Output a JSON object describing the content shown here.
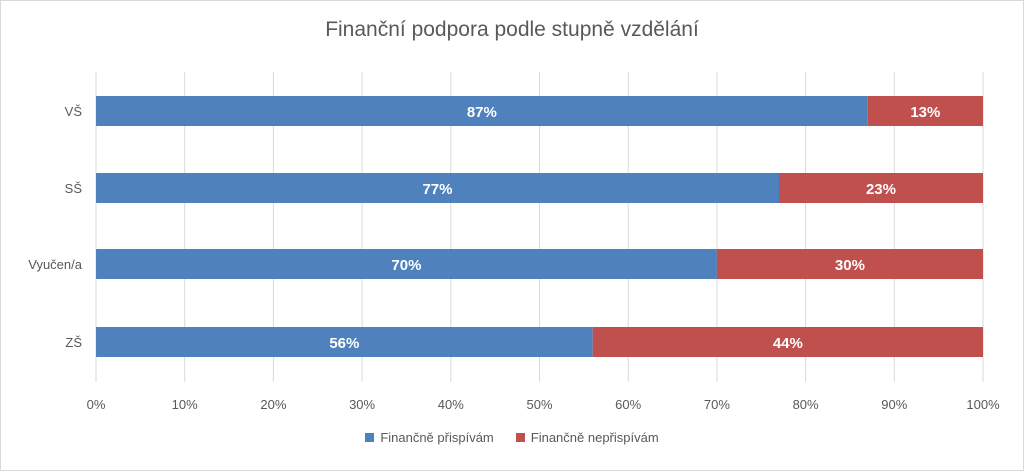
{
  "chart_data": {
    "type": "bar",
    "orientation": "horizontal",
    "stacked": true,
    "title": "Finanční podpora podle stupně vzdělání",
    "categories": [
      "VŠ",
      "SŠ",
      "Vyučen/a",
      "ZŠ"
    ],
    "series": [
      {
        "name": "Finančně přispívám",
        "values": [
          87,
          77,
          70,
          56
        ],
        "labels": [
          "87%",
          "77%",
          "70%",
          "56%"
        ],
        "color": "#4f81bd"
      },
      {
        "name": "Finančně nepřispívám",
        "values": [
          13,
          23,
          30,
          44
        ],
        "labels": [
          "13%",
          "23%",
          "30%",
          "44%"
        ],
        "color": "#c0504d"
      }
    ],
    "xlim": [
      0,
      100
    ],
    "xticks": [
      "0%",
      "10%",
      "20%",
      "30%",
      "40%",
      "50%",
      "60%",
      "70%",
      "80%",
      "90%",
      "100%"
    ],
    "grid": true,
    "legend_position": "bottom"
  }
}
